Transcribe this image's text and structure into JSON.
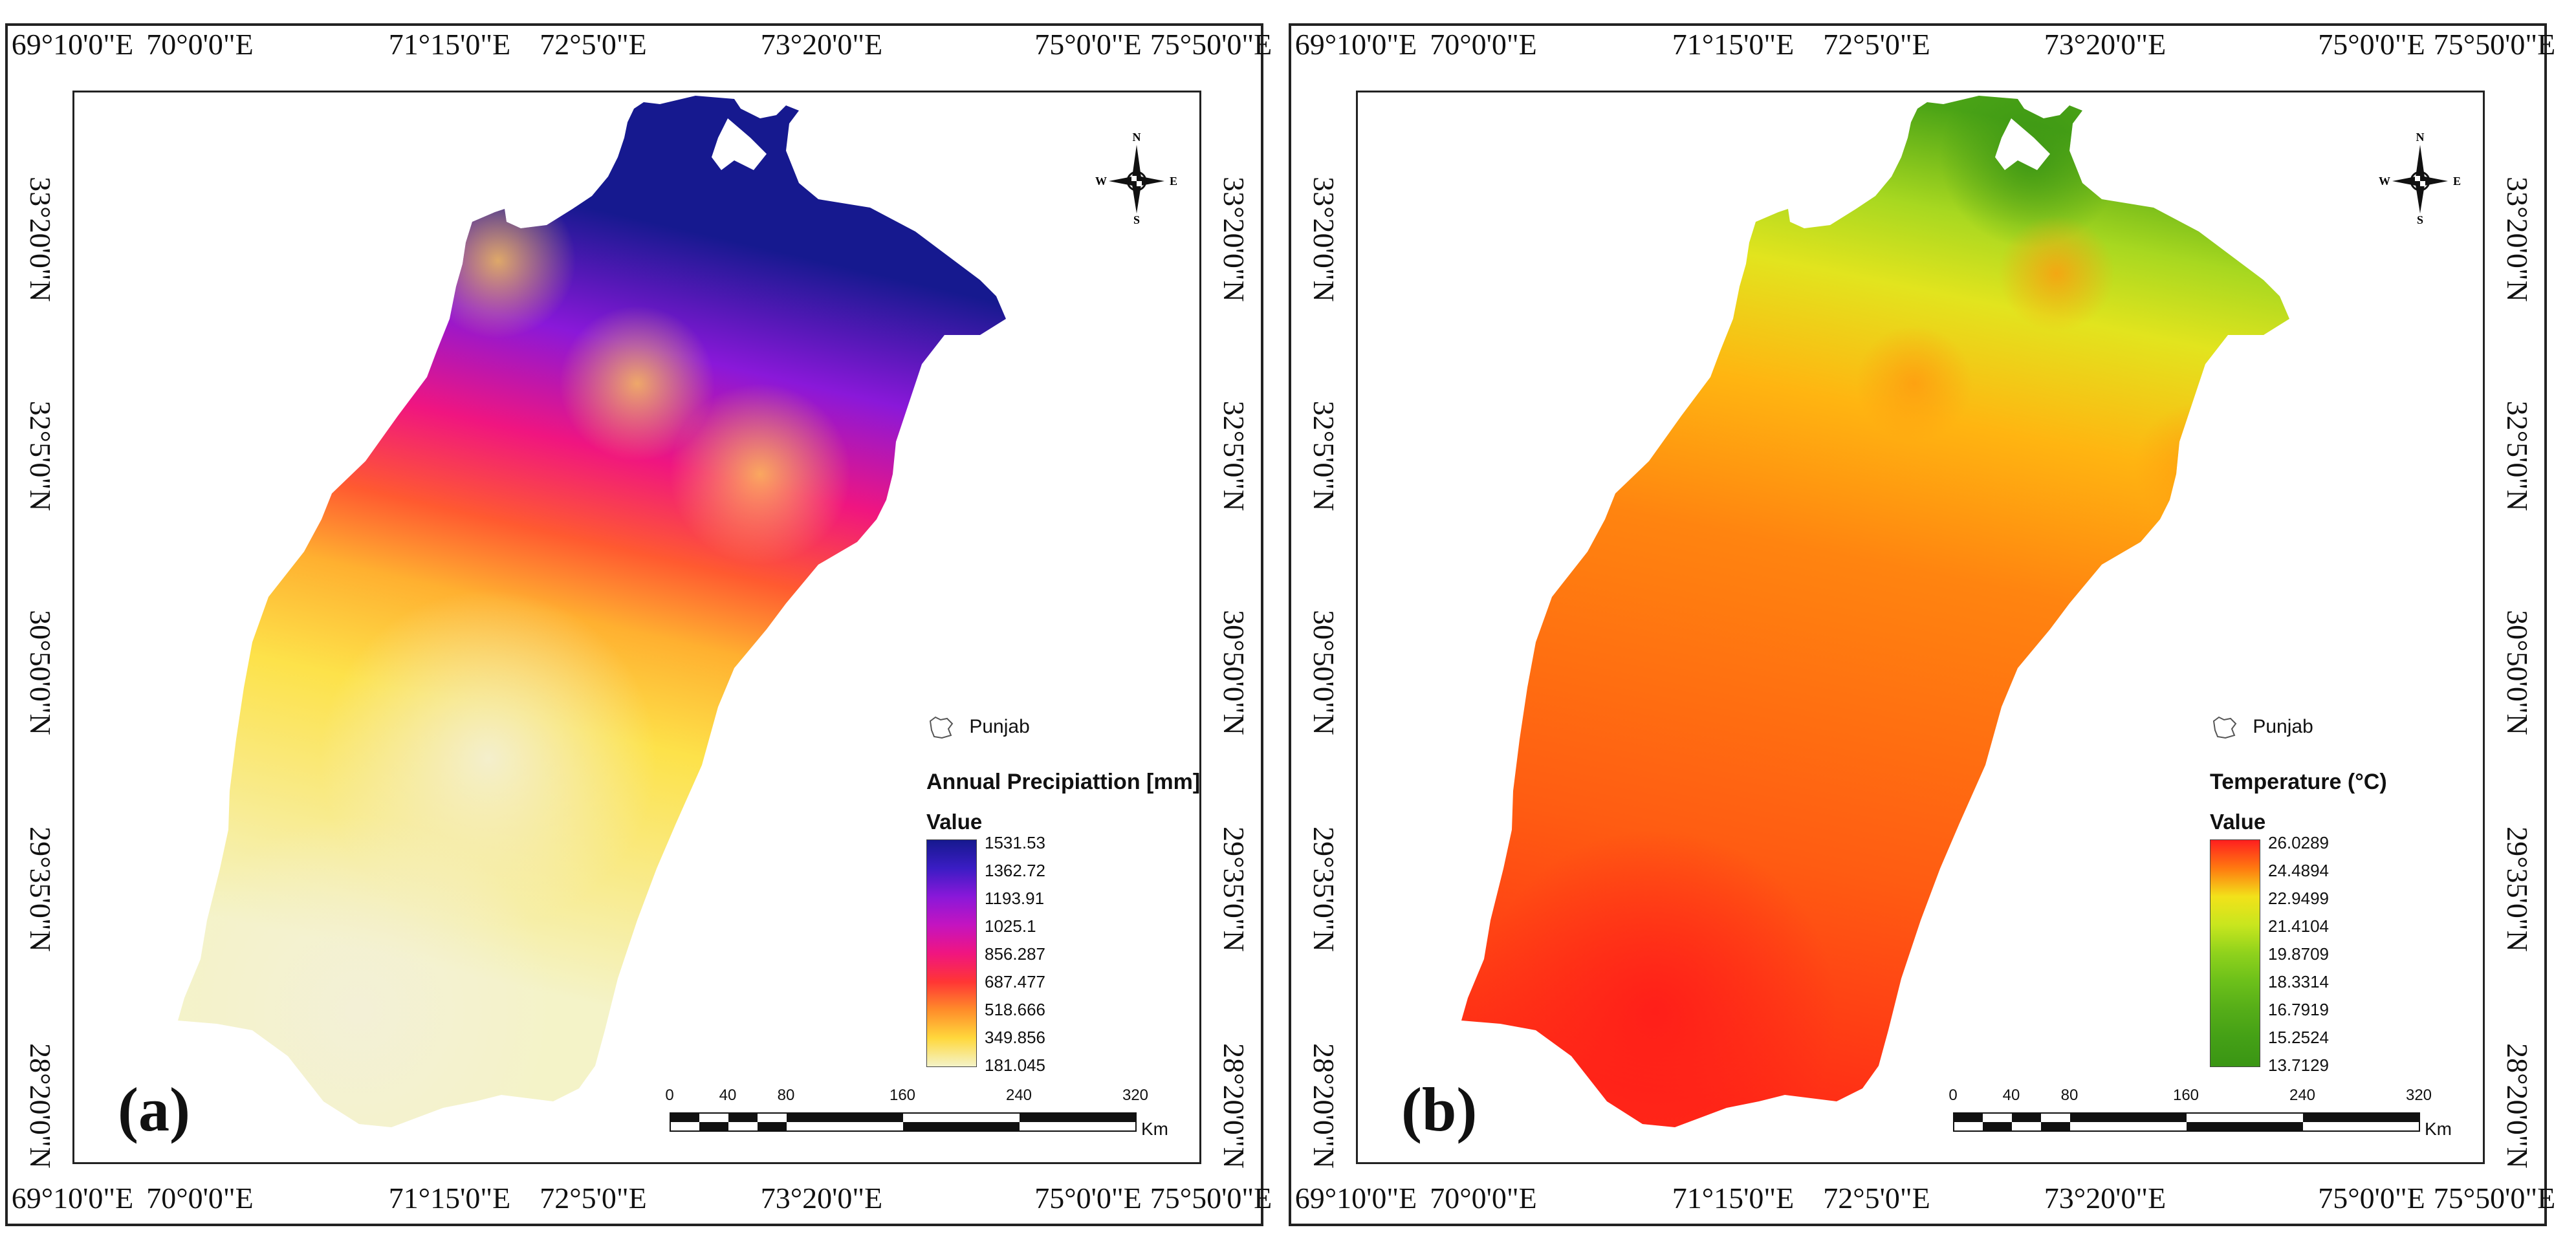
{
  "coords": {
    "longitudes": [
      "69°10'0\"E",
      "70°0'0\"E",
      "71°15'0\"E",
      "72°5'0\"E",
      "73°20'0\"E",
      "75°0'0\"E",
      "75°50'0\"E"
    ],
    "latitudes": [
      "33°20'0\"N",
      "32°5'0\"N",
      "30°50'0\"N",
      "29°35'0\"N",
      "28°20'0\"N"
    ]
  },
  "compass": {
    "north": "N",
    "south": "S",
    "east": "E",
    "west": "W"
  },
  "scale_bar": {
    "ticks": [
      "0",
      "40",
      "80",
      "160",
      "240",
      "320"
    ],
    "unit": "Km"
  },
  "panel_a": {
    "label": "(a)",
    "layer_name": "Punjab",
    "legend_title": "Annual Precipiattion [mm]",
    "legend_value_label": "Value",
    "legend_values": [
      "1531.53",
      "1362.72",
      "1193.91",
      "1025.1",
      "856.287",
      "687.477",
      "518.666",
      "349.856",
      "181.045"
    ],
    "legend_colors": [
      "#16198f",
      "#3b1cc4",
      "#8a18d9",
      "#c414c0",
      "#f01580",
      "#ff3535",
      "#ff8c2a",
      "#ffd83c",
      "#f4f3c8"
    ]
  },
  "panel_b": {
    "label": "(b)",
    "layer_name": "Punjab",
    "legend_title": "Temperature (°C)",
    "legend_value_label": "Value",
    "legend_values": [
      "26.0289",
      "24.4894",
      "22.9499",
      "21.4104",
      "19.8709",
      "18.3314",
      "16.7919",
      "15.2524",
      "13.7129"
    ],
    "legend_colors": [
      "#ff1f1f",
      "#ff7a10",
      "#f2e21a",
      "#c8e61e",
      "#8fd21c",
      "#6cc01a",
      "#55ad18",
      "#44a016",
      "#3a9514"
    ]
  }
}
